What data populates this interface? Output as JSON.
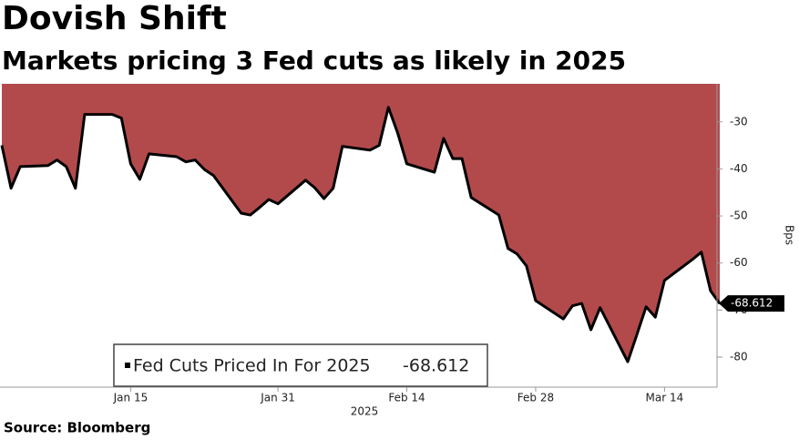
{
  "chart_data": {
    "type": "area",
    "title": "Dovish Shift",
    "subtitle": "Markets pricing 3 Fed cuts as likely in 2025",
    "source": "Source: Bloomberg",
    "ylabel": "Bps",
    "xlabel": "2025",
    "x": [
      "2025-01-01",
      "2025-01-02",
      "2025-01-03",
      "2025-01-06",
      "2025-01-07",
      "2025-01-08",
      "2025-01-09",
      "2025-01-10",
      "2025-01-13",
      "2025-01-14",
      "2025-01-15",
      "2025-01-16",
      "2025-01-17",
      "2025-01-20",
      "2025-01-21",
      "2025-01-22",
      "2025-01-23",
      "2025-01-24",
      "2025-01-27",
      "2025-01-28",
      "2025-01-29",
      "2025-01-30",
      "2025-01-31",
      "2025-02-03",
      "2025-02-04",
      "2025-02-05",
      "2025-02-06",
      "2025-02-07",
      "2025-02-10",
      "2025-02-11",
      "2025-02-12",
      "2025-02-13",
      "2025-02-14",
      "2025-02-17",
      "2025-02-18",
      "2025-02-19",
      "2025-02-20",
      "2025-02-21",
      "2025-02-24",
      "2025-02-25",
      "2025-02-26",
      "2025-02-27",
      "2025-02-28",
      "2025-03-03",
      "2025-03-04",
      "2025-03-05",
      "2025-03-06",
      "2025-03-07",
      "2025-03-10",
      "2025-03-11",
      "2025-03-12",
      "2025-03-13",
      "2025-03-14",
      "2025-03-17",
      "2025-03-18",
      "2025-03-19",
      "2025-03-20"
    ],
    "series": [
      {
        "name": "Fed Cuts Priced In For 2025",
        "color": "#b24a4c",
        "values": [
          -35.0,
          -44.1,
          -39.5,
          -39.3,
          -38.1,
          -39.5,
          -44.1,
          -28.4,
          -28.4,
          -29.2,
          -38.9,
          -42.2,
          -36.8,
          -37.4,
          -38.5,
          -38.1,
          -40.1,
          -41.4,
          -49.4,
          -49.8,
          -48.2,
          -46.5,
          -47.4,
          -42.4,
          -44.0,
          -46.3,
          -44.1,
          -35.2,
          -36.0,
          -35.0,
          -26.9,
          -32.3,
          -38.9,
          -40.7,
          -33.5,
          -37.8,
          -37.8,
          -46.1,
          -49.8,
          -56.9,
          -58.1,
          -60.6,
          -68.0,
          -71.9,
          -69.1,
          -68.6,
          -74.2,
          -69.5,
          -81.0,
          -75.2,
          -69.3,
          -71.5,
          -63.7,
          -59.3,
          -57.7,
          -65.9,
          -68.612
        ]
      }
    ],
    "xlim": [
      "2025-01-01",
      "2025-03-20"
    ],
    "xticks": [
      {
        "value": "2025-01-15",
        "label": "Jan 15"
      },
      {
        "value": "2025-01-31",
        "label": "Jan 31"
      },
      {
        "value": "2025-02-14",
        "label": "Feb 14"
      },
      {
        "value": "2025-02-28",
        "label": "Feb 28"
      },
      {
        "value": "2025-03-14",
        "label": "Mar 14"
      }
    ],
    "ylim": [
      -86.4,
      -21.9
    ],
    "yticks": [
      -30,
      -40,
      -50,
      -60,
      -70,
      -80
    ],
    "legend": "lower left"
  }
}
